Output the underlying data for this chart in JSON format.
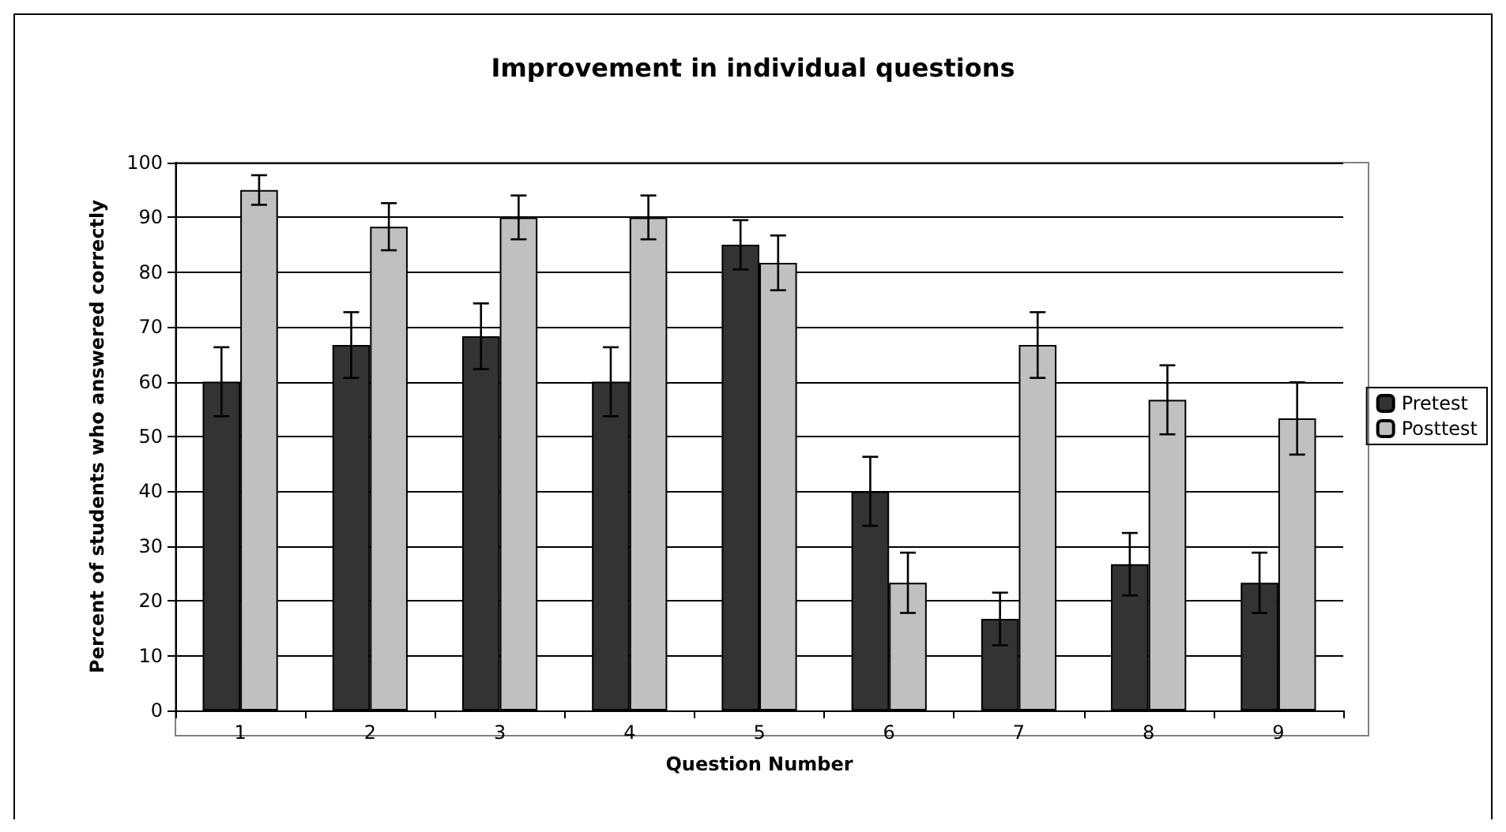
{
  "chart_data": {
    "type": "bar",
    "title": "Improvement in individual questions",
    "xlabel": "Question Number",
    "ylabel": "Percent of students who answered correctly",
    "categories": [
      "1",
      "2",
      "3",
      "4",
      "5",
      "6",
      "7",
      "8",
      "9"
    ],
    "series": [
      {
        "name": "Pretest",
        "color": "#333333",
        "values": [
          60,
          66.7,
          68.3,
          60,
          85,
          40,
          16.7,
          26.7,
          23.3
        ],
        "errors": [
          6.3,
          6,
          6,
          6.3,
          4.5,
          6.3,
          4.8,
          5.7,
          5.5
        ]
      },
      {
        "name": "Posttest",
        "color": "#c0c0c0",
        "values": [
          95,
          88.3,
          90,
          90,
          81.7,
          23.3,
          66.7,
          56.7,
          53.3
        ],
        "errors": [
          2.7,
          4.3,
          4,
          4,
          5,
          5.5,
          6,
          6.3,
          6.6
        ]
      }
    ],
    "ylim": [
      0,
      100
    ],
    "yticks": [
      0,
      10,
      20,
      30,
      40,
      50,
      60,
      70,
      80,
      90,
      100
    ],
    "grid": "y",
    "legend": "right"
  }
}
